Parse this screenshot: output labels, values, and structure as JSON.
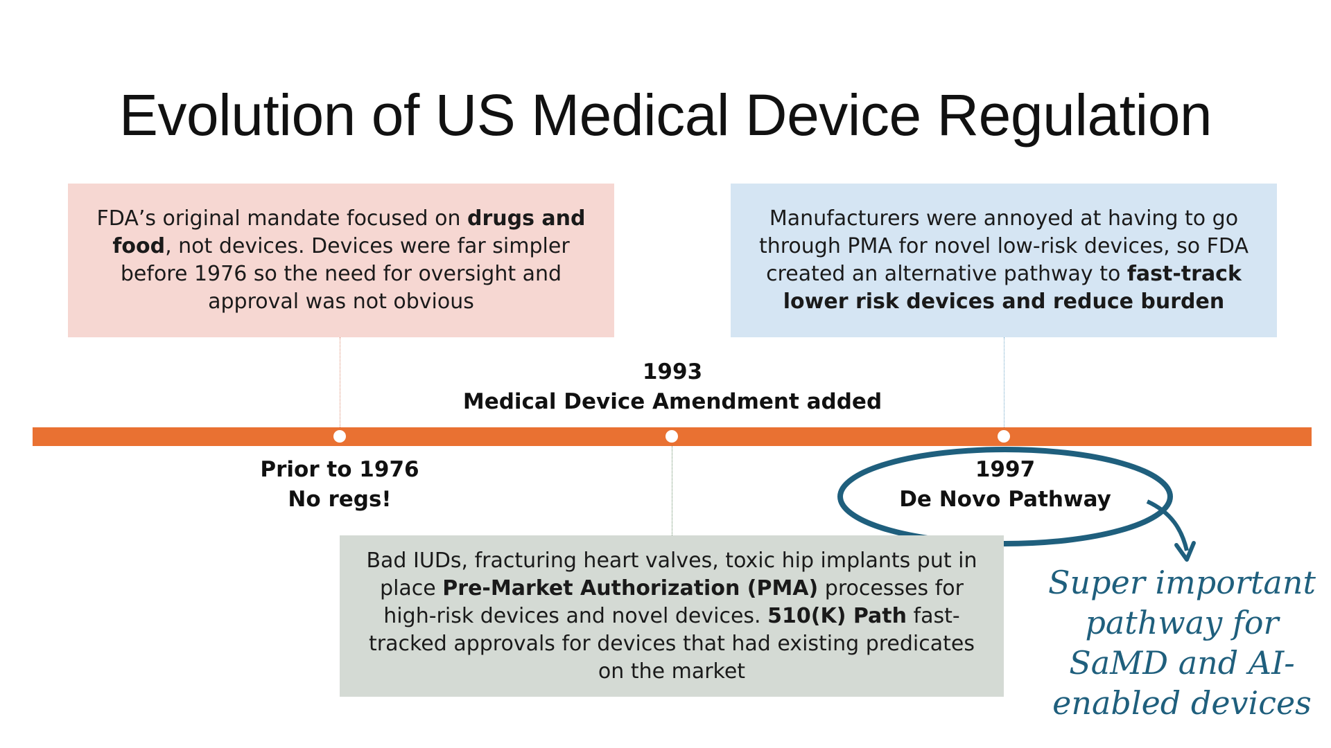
{
  "title": "Evolution of US Medical Device Regulation",
  "colors": {
    "timeline": "#e97132",
    "box_left_bg": "#f6d7d2",
    "box_right_bg": "#d5e5f3",
    "box_bottom_bg": "#d4dad4",
    "annotation": "#1f5f7d"
  },
  "boxes": {
    "left": {
      "pre": "FDA’s original mandate focused on ",
      "bold": "drugs and food",
      "post": ", not devices. Devices were far simpler before 1976 so the need for oversight and approval was not obvious"
    },
    "right": {
      "pre": "Manufacturers were annoyed at having to go through PMA for novel low-risk devices, so FDA created an alternative pathway to ",
      "bold": "fast-track lower risk devices and reduce burden"
    },
    "bottom": {
      "pre": "Bad IUDs, fracturing heart valves, toxic hip implants put in place ",
      "bold1": "Pre-Market Authorization (PMA)",
      "mid": " processes for high-risk devices and novel devices. ",
      "bold2": "510(K) Path",
      "post": " fast-tracked approvals for devices that had existing predicates on the market"
    }
  },
  "milestones": {
    "m1976": {
      "line1": "Prior to 1976",
      "line2": "No regs!"
    },
    "m1993": {
      "line1": "1993",
      "line2": "Medical Device Amendment added"
    },
    "m1997": {
      "line1": "1997",
      "line2": "De Novo Pathway"
    }
  },
  "annotation": {
    "line1": "Super important",
    "line2": "pathway for",
    "line3": "SaMD and AI-",
    "line4": "enabled devices"
  }
}
